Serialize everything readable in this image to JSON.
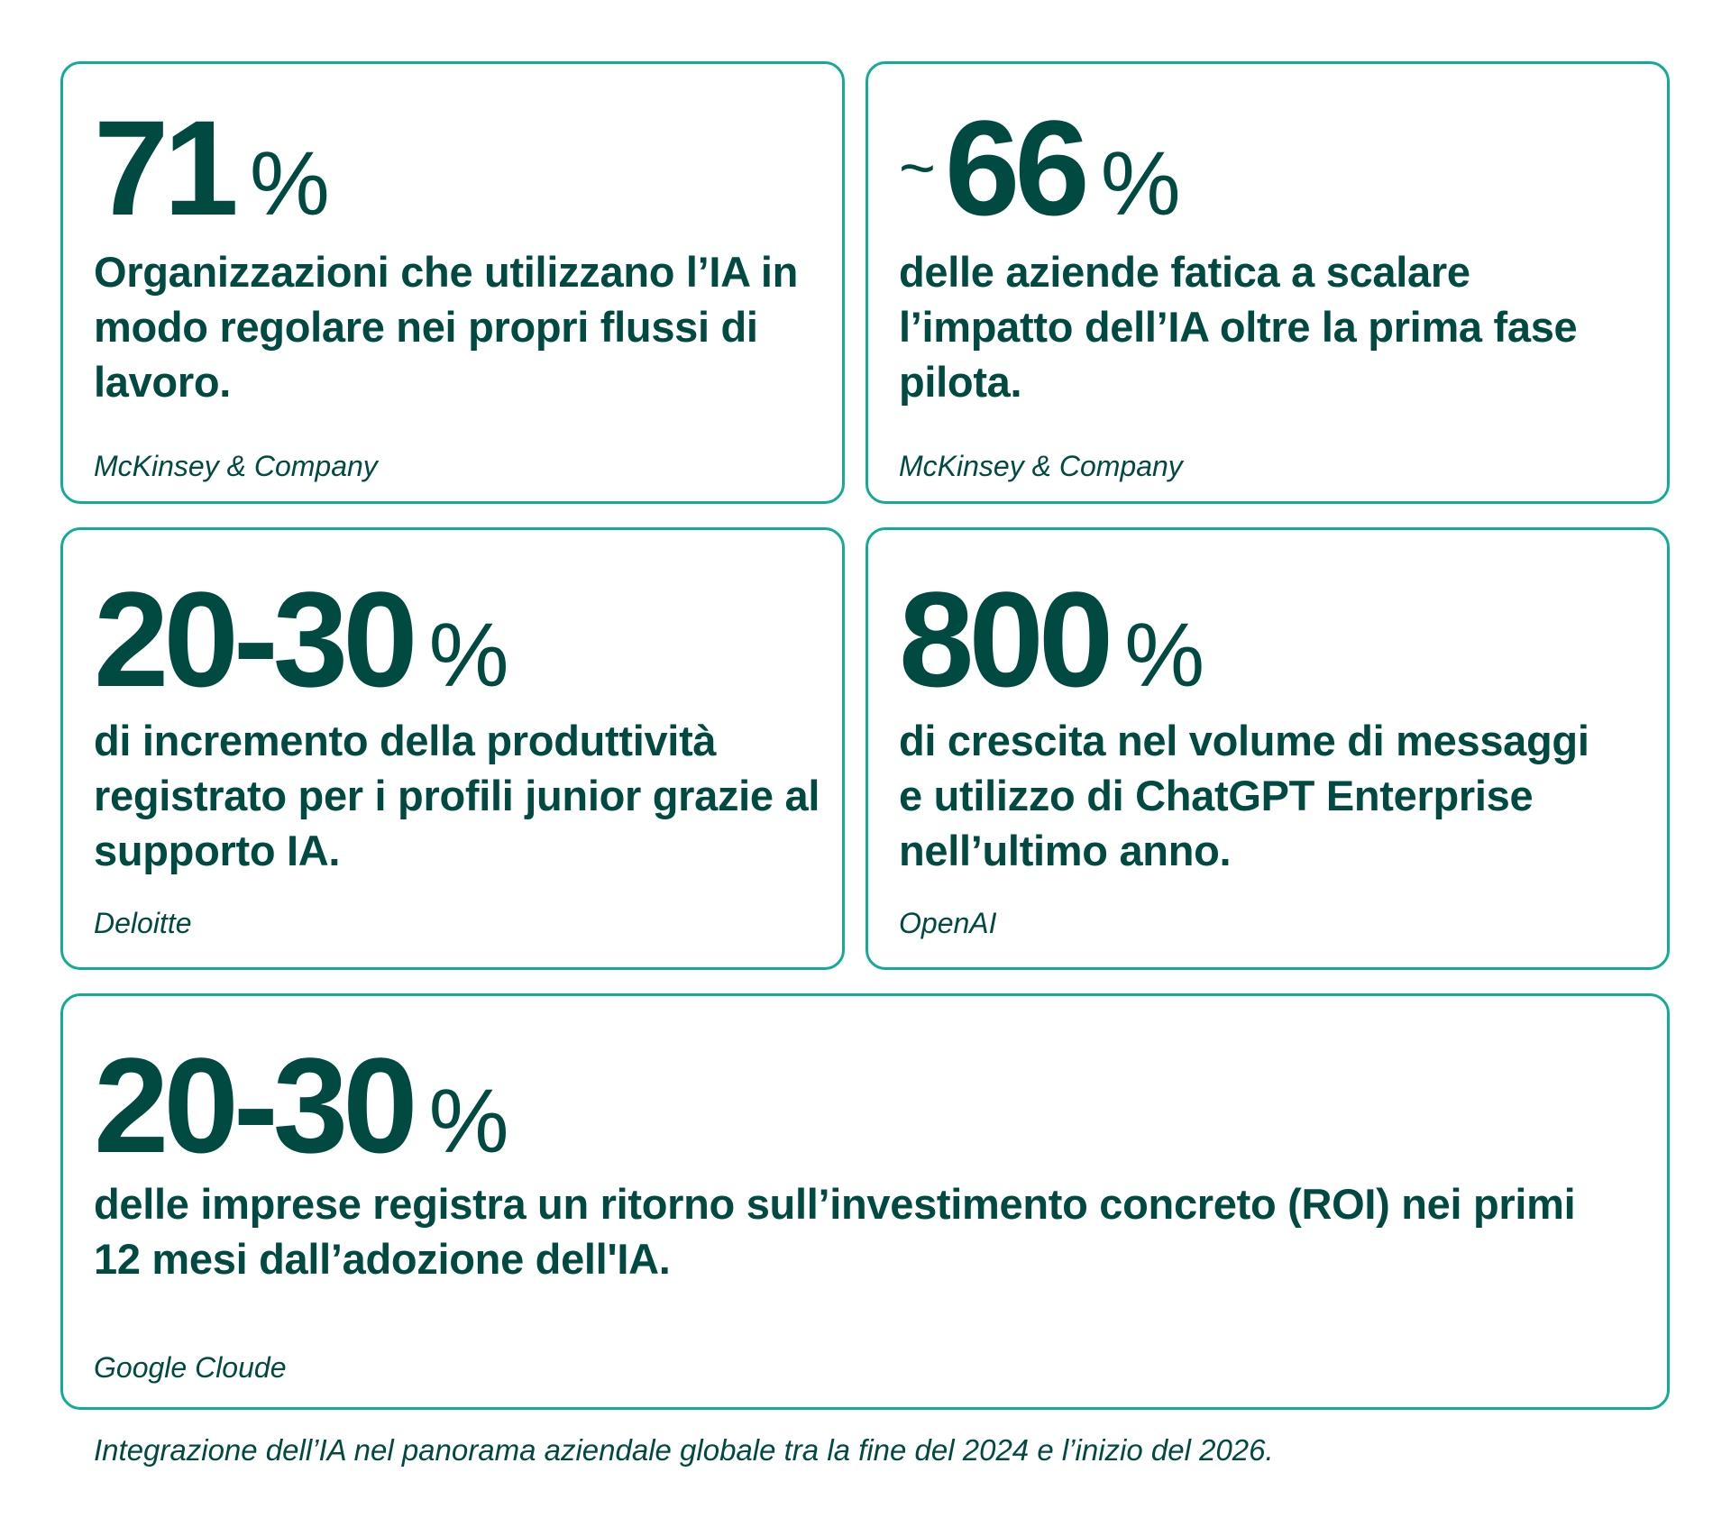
{
  "cards": [
    {
      "prefix": "",
      "value": "71",
      "unit": "%",
      "description": "Organizzazioni che utilizzano l’IA in modo regolare nei propri flussi di lavoro.",
      "source": "McKinsey & Company"
    },
    {
      "prefix": "~",
      "value": "66",
      "unit": "%",
      "description": "delle aziende fatica a scalare l’impatto dell’IA oltre la prima fase pilota.",
      "source": "McKinsey & Company"
    },
    {
      "prefix": "",
      "value": "20-30",
      "unit": "%",
      "description": "di incremento della produttività registrato per i profili junior grazie al supporto IA.",
      "source": "Deloitte"
    },
    {
      "prefix": "",
      "value": "800",
      "unit": "%",
      "description": "di crescita nel volume di messaggi e utilizzo di ChatGPT Enterprise nell’ultimo anno.",
      "source": "OpenAI"
    },
    {
      "prefix": "",
      "value": "20-30",
      "unit": "%",
      "description": "delle imprese registra un ritorno sull’investimento concreto (ROI) nei primi 12 mesi dall’adozione dell'IA.",
      "source": "Google Cloude"
    }
  ],
  "caption": "Integrazione dell’IA nel panorama aziendale globale tra la fine del 2024 e l’inizio del 2026.",
  "colors": {
    "text": "#004a42",
    "border": "#14ab96"
  }
}
